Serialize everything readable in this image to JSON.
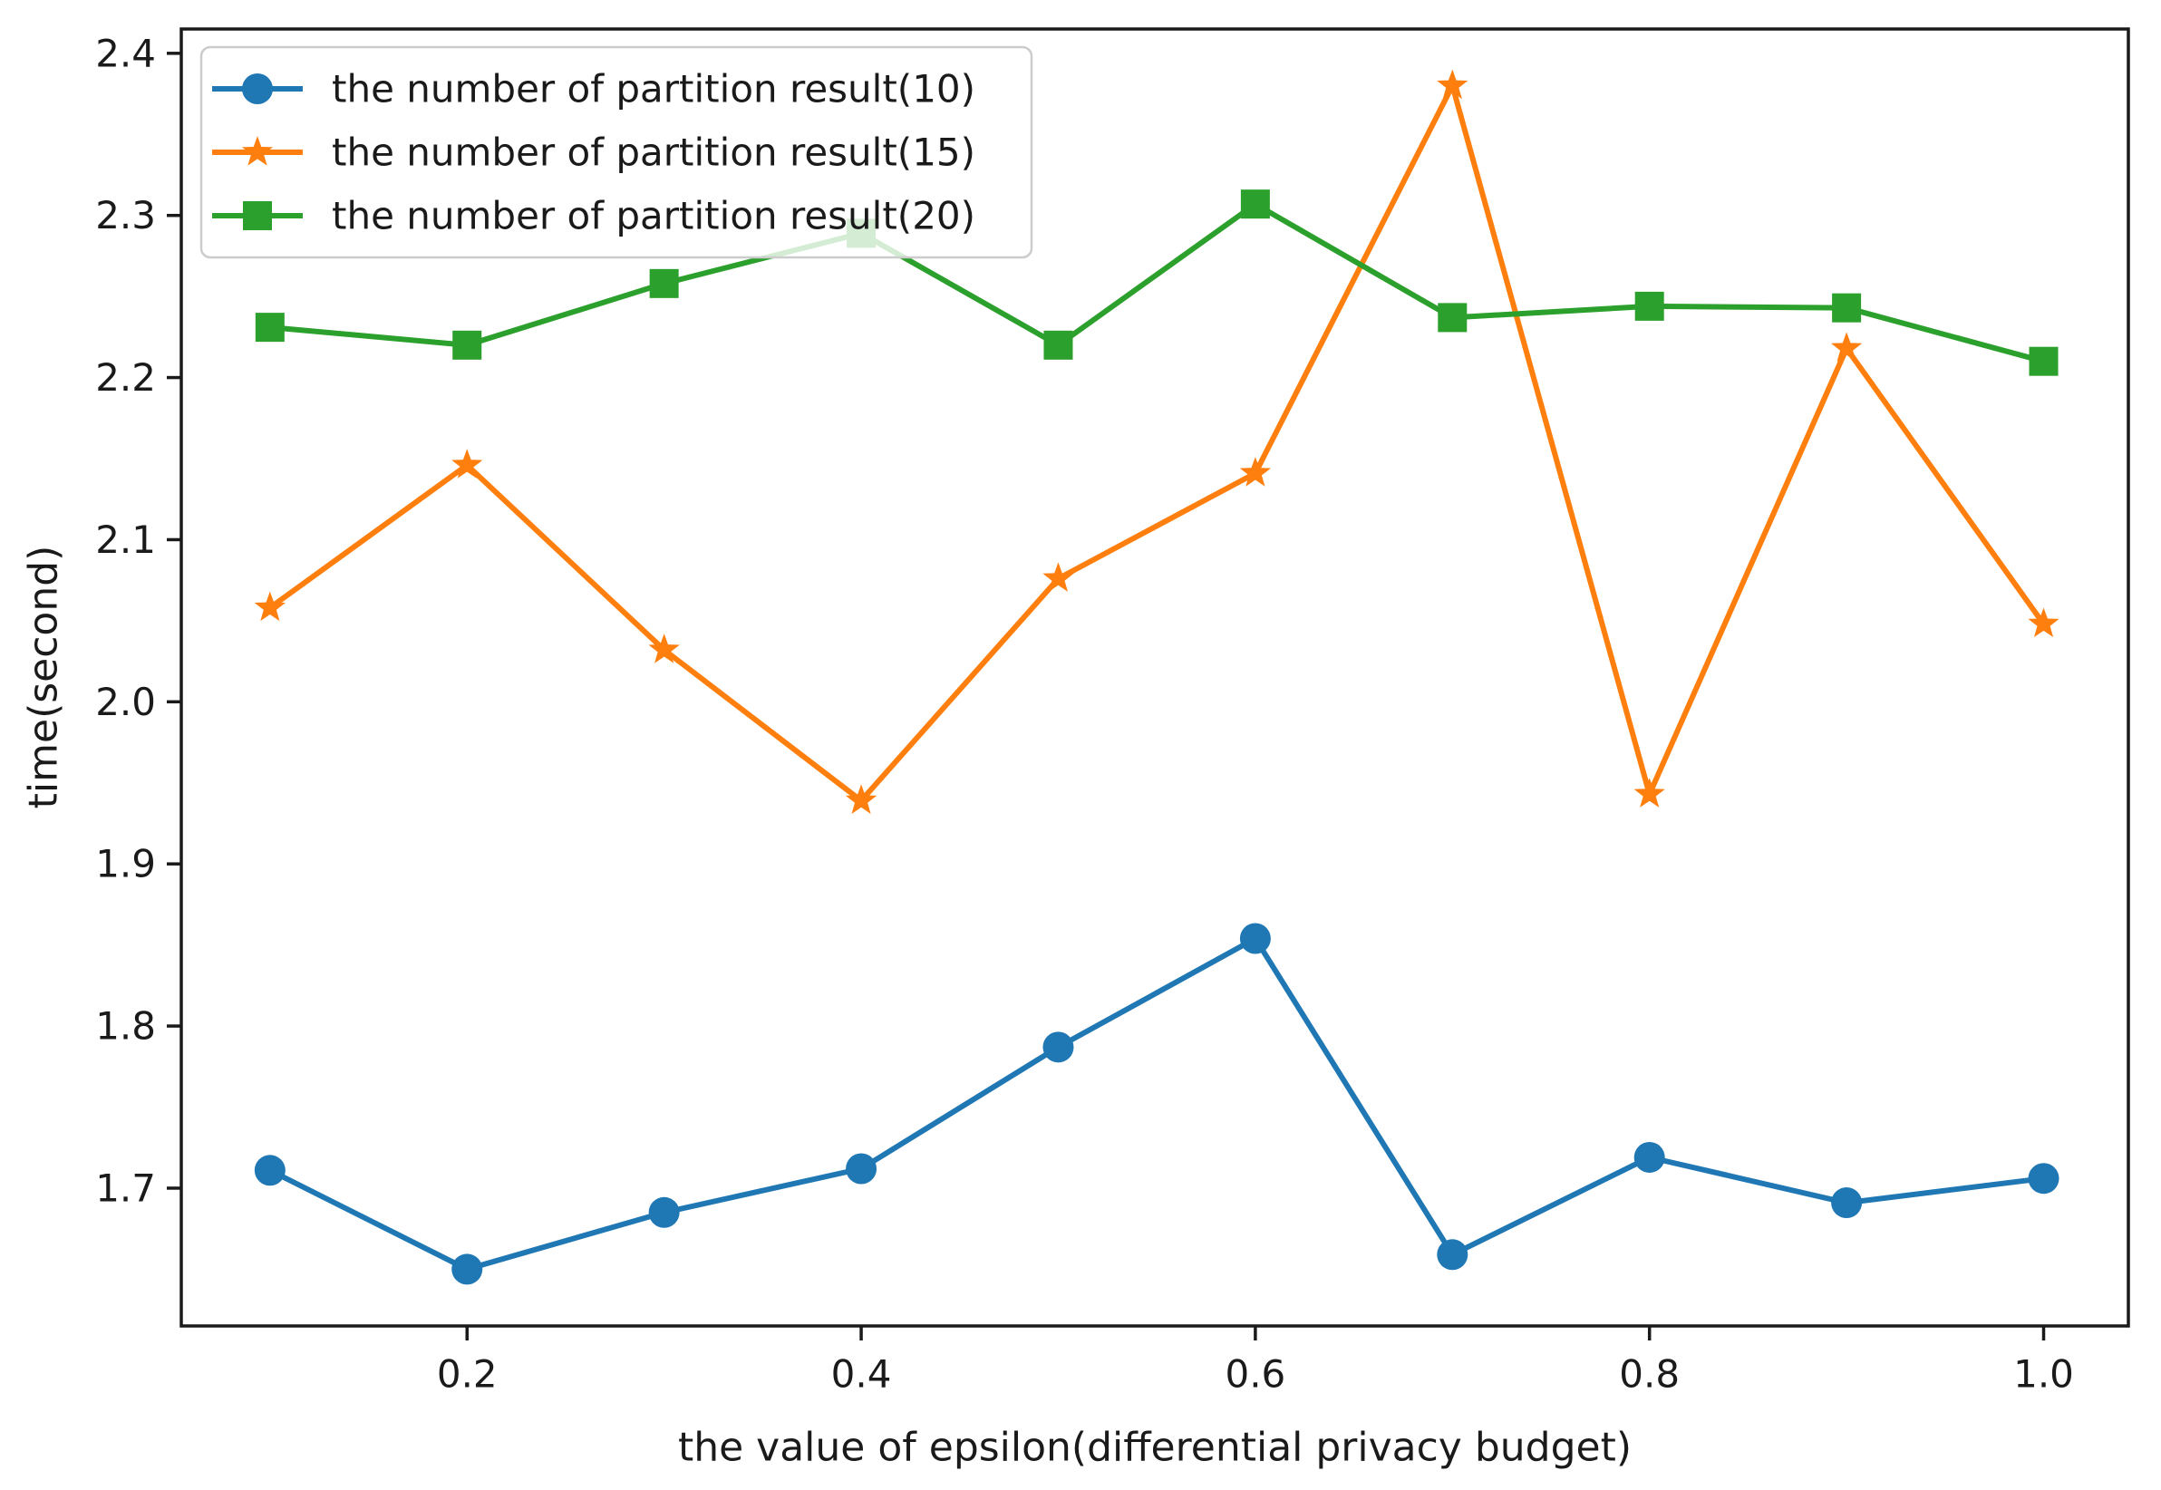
{
  "chart_data": {
    "type": "line",
    "title": "",
    "xlabel": "the value of epsilon(differential privacy budget)",
    "ylabel": "time(second)",
    "x": [
      0.1,
      0.2,
      0.3,
      0.4,
      0.5,
      0.6,
      0.7,
      0.8,
      0.9,
      1.0
    ],
    "series": [
      {
        "name": "the number of partition result(10)",
        "color": "#1f77b4",
        "marker": "circle",
        "values": [
          1.711,
          1.65,
          1.685,
          1.712,
          1.787,
          1.854,
          1.659,
          1.719,
          1.691,
          1.706
        ]
      },
      {
        "name": "the number of partition result(15)",
        "color": "#ff7f0e",
        "marker": "star",
        "values": [
          2.058,
          2.146,
          2.032,
          1.939,
          2.076,
          2.141,
          2.38,
          1.943,
          2.218,
          2.048
        ]
      },
      {
        "name": "the number of partition result(20)",
        "color": "#2ca02c",
        "marker": "square",
        "values": [
          2.231,
          2.22,
          2.258,
          2.289,
          2.22,
          2.307,
          2.237,
          2.244,
          2.243,
          2.21
        ]
      }
    ],
    "xtick_labels": [
      "0.2",
      "0.4",
      "0.6",
      "0.8",
      "1.0"
    ],
    "xtick_values": [
      0.2,
      0.4,
      0.6,
      0.8,
      1.0
    ],
    "ytick_labels": [
      "1.7",
      "1.8",
      "1.9",
      "2.0",
      "2.1",
      "2.2",
      "2.3",
      "2.4"
    ],
    "ytick_values": [
      1.7,
      1.8,
      1.9,
      2.0,
      2.1,
      2.2,
      2.3,
      2.4
    ],
    "xlim": [
      0.055,
      1.043
    ],
    "ylim": [
      1.615,
      2.415
    ],
    "grid": false,
    "legend_position": "upper-left",
    "axis_color": "#1a1a1a",
    "legend_border_color": "#cccccc",
    "legend_fill": "#ffffff",
    "legend_fill_opacity": 0.8,
    "background": "#ffffff"
  }
}
